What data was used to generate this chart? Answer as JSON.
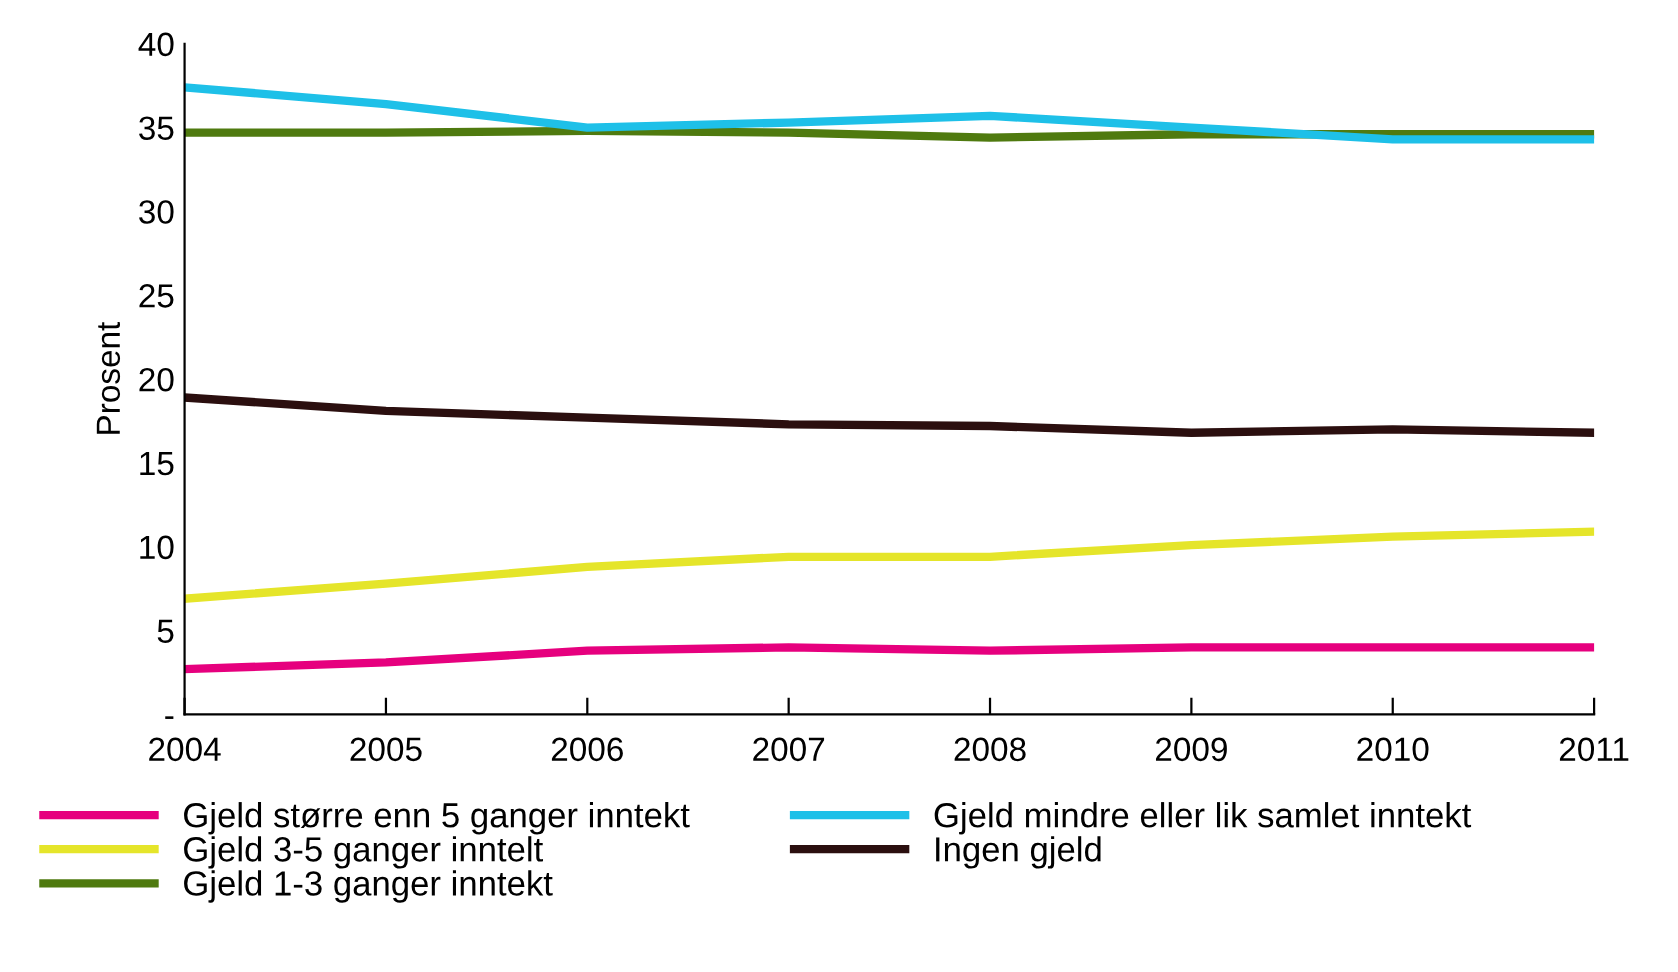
{
  "chart_data": {
    "type": "line",
    "ylabel": "Prosent",
    "x": [
      2004,
      2005,
      2006,
      2007,
      2008,
      2009,
      2010,
      2011
    ],
    "xlim": [
      2004,
      2011
    ],
    "xticks": [
      2004,
      2005,
      2006,
      2007,
      2008,
      2009,
      2010,
      2011
    ],
    "ylim": [
      0,
      40
    ],
    "yticks": [
      {
        "value": 0,
        "label": "-"
      },
      5,
      10,
      15,
      20,
      25,
      30,
      35,
      40
    ],
    "grid": false,
    "legend": "bottom",
    "marker": "none",
    "line_style": "solid",
    "series": [
      {
        "name": "Gjeld større enn 5 ganger inntekt",
        "color": "#e6007e",
        "values": [
          2.7,
          3.1,
          3.8,
          4.0,
          3.8,
          4.0,
          4.0,
          4.0
        ]
      },
      {
        "name": "Gjeld 3-5 ganger inntelt",
        "color": "#e5e52a",
        "values": [
          6.9,
          7.8,
          8.8,
          9.4,
          9.4,
          10.1,
          10.6,
          10.9
        ]
      },
      {
        "name": "Gjeld 1-3 ganger inntekt",
        "color": "#4f7a0f",
        "values": [
          34.7,
          34.7,
          34.8,
          34.7,
          34.4,
          34.6,
          34.6,
          34.6
        ]
      },
      {
        "name": "Gjeld mindre eller lik samlet inntekt",
        "color": "#1ec0e8",
        "values": [
          37.4,
          36.4,
          35.0,
          35.3,
          35.7,
          35.0,
          34.3,
          34.3
        ]
      },
      {
        "name": "Ingen gjeld",
        "color": "#2b0f0f",
        "values": [
          18.9,
          18.1,
          17.7,
          17.3,
          17.2,
          16.8,
          17.0,
          16.8
        ]
      }
    ]
  }
}
